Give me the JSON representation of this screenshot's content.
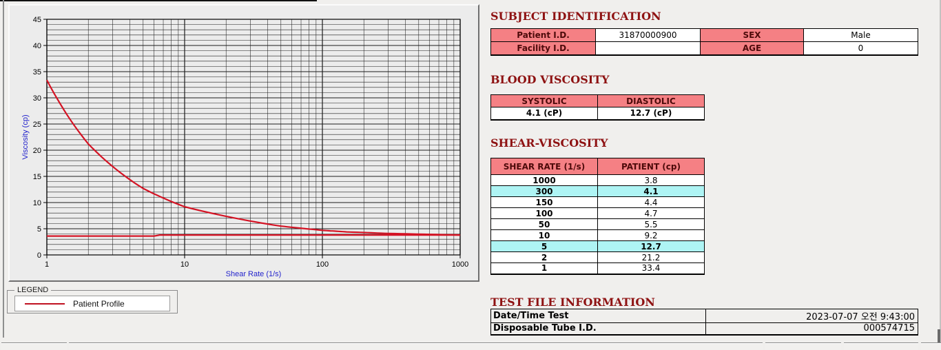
{
  "colors": {
    "header_pink": "#f58084",
    "highlight_cyan": "#aef4f4",
    "title_maroon": "#8e1212",
    "curve_red": "#d41324",
    "axis_label_blue": "#2323cc",
    "grid": "#1c1c1c"
  },
  "chart_data": {
    "type": "line",
    "x_scale": "log",
    "title": "",
    "xlabel": "Shear Rate (1/s)",
    "ylabel": "Viscosity (cp)",
    "xlim": [
      1,
      1000
    ],
    "ylim": [
      0,
      45
    ],
    "x_ticks": [
      1,
      10,
      100,
      1000
    ],
    "y_ticks_major": [
      0,
      5,
      10,
      15,
      20,
      25,
      30,
      35,
      40,
      45
    ],
    "grid": "on",
    "legend_position": "below-left",
    "series": [
      {
        "name": "Patient Profile",
        "color": "#d41324",
        "x": [
          1,
          2,
          5,
          10,
          50,
          100,
          150,
          300,
          1000
        ],
        "y": [
          33.4,
          21.2,
          12.7,
          9.2,
          5.5,
          4.7,
          4.4,
          4.1,
          3.8
        ]
      },
      {
        "name": "baseline",
        "color": "#d41324",
        "x": [
          1,
          6,
          6.6,
          1000
        ],
        "y": [
          3.6,
          3.6,
          3.8,
          3.8
        ]
      }
    ]
  },
  "legend": {
    "box_label": "LEGEND",
    "entries": [
      {
        "label": "Patient Profile",
        "color": "#c01020"
      }
    ]
  },
  "subject_identification": {
    "title": "SUBJECT IDENTIFICATION",
    "rows": [
      {
        "label1": "Patient I.D.",
        "value1": "31870000900",
        "label2": "SEX",
        "value2": "Male"
      },
      {
        "label1": "Facility I.D.",
        "value1": "",
        "label2": "AGE",
        "value2": "0"
      }
    ]
  },
  "blood_viscosity": {
    "title": "BLOOD VISCOSITY",
    "headers": [
      "SYSTOLIC",
      "DIASTOLIC"
    ],
    "values": [
      "4.1 (cP)",
      "12.7 (cP)"
    ]
  },
  "shear_viscosity": {
    "title": "SHEAR-VISCOSITY",
    "headers": [
      "SHEAR RATE (1/s)",
      "PATIENT (cp)"
    ],
    "rows": [
      {
        "rate": "1000",
        "patient": "3.8",
        "highlight": false
      },
      {
        "rate": "300",
        "patient": "4.1",
        "highlight": true
      },
      {
        "rate": "150",
        "patient": "4.4",
        "highlight": false
      },
      {
        "rate": "100",
        "patient": "4.7",
        "highlight": false
      },
      {
        "rate": "50",
        "patient": "5.5",
        "highlight": false
      },
      {
        "rate": "10",
        "patient": "9.2",
        "highlight": false
      },
      {
        "rate": "5",
        "patient": "12.7",
        "highlight": true
      },
      {
        "rate": "2",
        "patient": "21.2",
        "highlight": false
      },
      {
        "rate": "1",
        "patient": "33.4",
        "highlight": false
      }
    ]
  },
  "test_file_information": {
    "title": "TEST FILE INFORMATION",
    "rows": [
      {
        "label": "Date/Time Test",
        "value": "2023-07-07  오전 9:43:00"
      },
      {
        "label": "Disposable Tube I.D.",
        "value": "000574715"
      }
    ]
  }
}
